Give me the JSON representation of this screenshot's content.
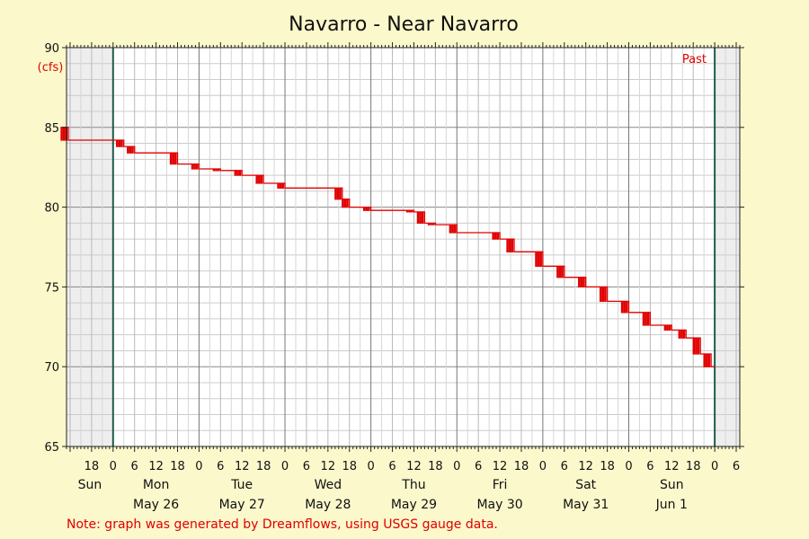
{
  "chart_data": {
    "type": "line",
    "title": "Navarro - Near Navarro",
    "ylabel": "(cfs)",
    "ylim": [
      65,
      90
    ],
    "y_ticks": [
      65,
      70,
      75,
      80,
      85,
      90
    ],
    "x_start": "2025-05-25T11:00",
    "x_end": "2025-06-02T07:00",
    "x_tick_labels": [
      "18",
      "0",
      "6",
      "12",
      "18",
      "0",
      "6",
      "12",
      "18",
      "0",
      "6",
      "12",
      "18",
      "0",
      "6",
      "12",
      "18",
      "0",
      "6",
      "12",
      "18",
      "0",
      "6",
      "12",
      "18",
      "0",
      "6",
      "12",
      "18",
      "0",
      "6",
      "12",
      "18",
      "0",
      "6"
    ],
    "day_labels": [
      "Sun",
      "Mon",
      "Tue",
      "Wed",
      "Thu",
      "Fri",
      "Sat",
      "Sun"
    ],
    "date_labels": [
      "May 26",
      "May 27",
      "May 28",
      "May 29",
      "May 30",
      "May 31",
      "Jun 1"
    ],
    "past_window": {
      "start": "2025-05-26T00:00",
      "end": "2025-06-02T00:00",
      "label": "Past"
    },
    "series": [
      {
        "color": "#e00000",
        "x": [
          "2025-05-25T11:00",
          "2025-05-25T11:30",
          "2025-05-26T00:00",
          "2025-05-26T03:00",
          "2025-05-26T06:00",
          "2025-05-26T12:00",
          "2025-05-26T18:00",
          "2025-05-27T00:00",
          "2025-05-27T06:00",
          "2025-05-27T12:00",
          "2025-05-27T18:00",
          "2025-05-28T00:00",
          "2025-05-28T06:00",
          "2025-05-28T12:00",
          "2025-05-28T16:00",
          "2025-05-28T18:00",
          "2025-05-29T00:00",
          "2025-05-29T06:00",
          "2025-05-29T12:00",
          "2025-05-29T15:00",
          "2025-05-29T18:00",
          "2025-05-30T00:00",
          "2025-05-30T06:00",
          "2025-05-30T12:00",
          "2025-05-30T16:00",
          "2025-05-31T00:00",
          "2025-05-31T06:00",
          "2025-05-31T12:00",
          "2025-05-31T18:00",
          "2025-06-01T00:00",
          "2025-06-01T06:00",
          "2025-06-01T12:00",
          "2025-06-01T16:00",
          "2025-06-01T20:00",
          "2025-06-01T23:00"
        ],
        "y": [
          85.0,
          84.2,
          84.2,
          83.8,
          83.4,
          83.4,
          82.7,
          82.4,
          82.3,
          82.0,
          81.5,
          81.2,
          81.2,
          81.2,
          80.5,
          80.0,
          79.8,
          79.8,
          79.7,
          79.0,
          78.9,
          78.4,
          78.4,
          78.0,
          77.2,
          76.3,
          75.6,
          75.0,
          74.1,
          73.4,
          72.6,
          72.3,
          71.8,
          70.8,
          70.0
        ]
      }
    ],
    "grid": true
  },
  "note": "Note: graph was generated by Dreamflows, using USGS gauge data."
}
